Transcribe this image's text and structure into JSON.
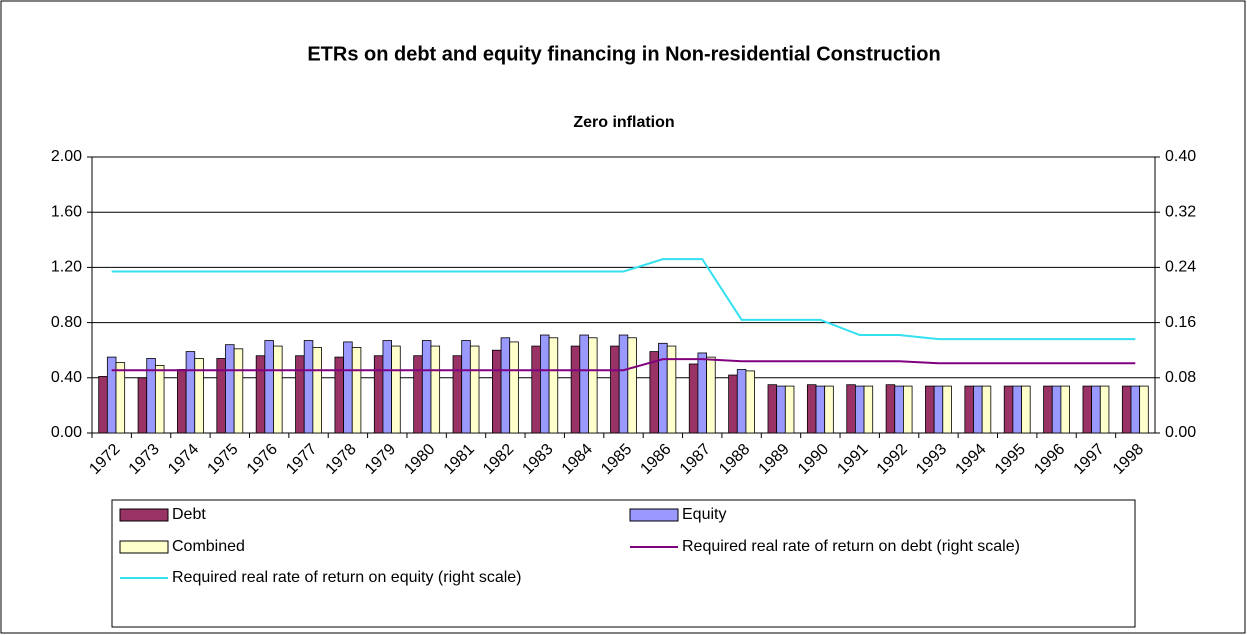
{
  "chart_data": {
    "type": "bar_line",
    "title": "ETRs on debt and equity financing in Non-residential Construction",
    "subtitle": "Zero inflation",
    "categories": [
      "1972",
      "1973",
      "1974",
      "1975",
      "1976",
      "1977",
      "1978",
      "1979",
      "1980",
      "1981",
      "1982",
      "1983",
      "1984",
      "1985",
      "1986",
      "1987",
      "1988",
      "1989",
      "1990",
      "1991",
      "1992",
      "1993",
      "1994",
      "1995",
      "1996",
      "1997",
      "1998"
    ],
    "series": [
      {
        "name": "Debt",
        "type": "bar",
        "color": "#993366",
        "values": [
          0.41,
          0.4,
          0.46,
          0.54,
          0.56,
          0.56,
          0.55,
          0.56,
          0.56,
          0.56,
          0.6,
          0.63,
          0.63,
          0.63,
          0.59,
          0.5,
          0.42,
          0.35,
          0.35,
          0.35,
          0.35,
          0.34,
          0.34,
          0.34,
          0.34,
          0.34,
          0.34
        ]
      },
      {
        "name": "Equity",
        "type": "bar",
        "color": "#9999ff",
        "values": [
          0.55,
          0.54,
          0.59,
          0.64,
          0.67,
          0.67,
          0.66,
          0.67,
          0.67,
          0.67,
          0.69,
          0.71,
          0.71,
          0.71,
          0.65,
          0.58,
          0.46,
          0.34,
          0.34,
          0.34,
          0.34,
          0.34,
          0.34,
          0.34,
          0.34,
          0.34,
          0.34
        ]
      },
      {
        "name": "Combined",
        "type": "bar",
        "color": "#ffffcc",
        "values": [
          0.51,
          0.49,
          0.54,
          0.61,
          0.63,
          0.62,
          0.62,
          0.63,
          0.63,
          0.63,
          0.66,
          0.69,
          0.69,
          0.69,
          0.63,
          0.55,
          0.45,
          0.34,
          0.34,
          0.34,
          0.34,
          0.34,
          0.34,
          0.34,
          0.34,
          0.34,
          0.34
        ]
      },
      {
        "name": "Required real rate of return on debt (right scale)",
        "type": "line",
        "axis": "y2",
        "color": "#800080",
        "values": [
          0.091,
          0.091,
          0.091,
          0.091,
          0.091,
          0.091,
          0.091,
          0.091,
          0.091,
          0.091,
          0.091,
          0.091,
          0.091,
          0.091,
          0.107,
          0.107,
          0.104,
          0.104,
          0.104,
          0.104,
          0.104,
          0.101,
          0.101,
          0.101,
          0.101,
          0.101,
          0.101
        ]
      },
      {
        "name": "Required real rate of return on equity (right scale)",
        "type": "line",
        "axis": "y2",
        "color": "#33e0f0",
        "values": [
          0.234,
          0.234,
          0.234,
          0.234,
          0.234,
          0.234,
          0.234,
          0.234,
          0.234,
          0.234,
          0.234,
          0.234,
          0.234,
          0.234,
          0.252,
          0.252,
          0.164,
          0.164,
          0.164,
          0.142,
          0.142,
          0.136,
          0.136,
          0.136,
          0.136,
          0.136,
          0.136
        ]
      }
    ],
    "ylim": [
      0,
      2
    ],
    "yticks": [
      {
        "value": 0,
        "label": "0.00"
      },
      {
        "value": 0.4,
        "label": "0.40"
      },
      {
        "value": 0.8,
        "label": "0.80"
      },
      {
        "value": 1.2,
        "label": "1.20"
      },
      {
        "value": 1.6,
        "label": "1.60"
      },
      {
        "value": 2,
        "label": "2.00"
      }
    ],
    "y2lim": [
      0,
      0.4
    ],
    "y2ticks": [
      {
        "value": 0,
        "label": "0.00"
      },
      {
        "value": 0.08,
        "label": "0.08"
      },
      {
        "value": 0.16,
        "label": "0.16"
      },
      {
        "value": 0.24,
        "label": "0.24"
      },
      {
        "value": 0.32,
        "label": "0.32"
      },
      {
        "value": 0.4,
        "label": "0.40"
      }
    ],
    "grid": true
  }
}
